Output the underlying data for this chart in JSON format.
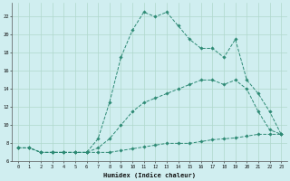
{
  "xlabel": "Humidex (Indice chaleur)",
  "bg_color": "#d0eef0",
  "grid_color": "#b0d8cc",
  "line_color": "#2d8a74",
  "series1_y": [
    7.5,
    7.5,
    7.0,
    7.0,
    7.0,
    7.0,
    7.0,
    7.0,
    7.0,
    7.2,
    7.4,
    7.6,
    7.8,
    8.0,
    8.0,
    8.0,
    8.2,
    8.4,
    8.5,
    8.6,
    8.8,
    9.0,
    9.0,
    9.0
  ],
  "series2_y": [
    7.5,
    7.5,
    7.0,
    7.0,
    7.0,
    7.0,
    7.0,
    7.5,
    8.5,
    10.0,
    11.5,
    12.5,
    13.0,
    13.5,
    14.0,
    14.5,
    15.0,
    15.0,
    14.5,
    15.0,
    14.0,
    11.5,
    9.5,
    9.0
  ],
  "series3_y": [
    7.5,
    7.5,
    7.0,
    7.0,
    7.0,
    7.0,
    7.0,
    8.5,
    12.5,
    17.5,
    20.5,
    22.5,
    22.0,
    22.5,
    21.0,
    19.5,
    18.5,
    18.5,
    17.5,
    19.5,
    15.0,
    13.5,
    11.5,
    9.0
  ],
  "xlim": [
    -0.5,
    23.5
  ],
  "ylim": [
    6,
    23.5
  ],
  "yticks": [
    6,
    8,
    10,
    12,
    14,
    16,
    18,
    20,
    22
  ],
  "xticks": [
    0,
    1,
    2,
    3,
    4,
    5,
    6,
    7,
    8,
    9,
    10,
    11,
    12,
    13,
    14,
    15,
    16,
    17,
    18,
    19,
    20,
    21,
    22,
    23
  ]
}
